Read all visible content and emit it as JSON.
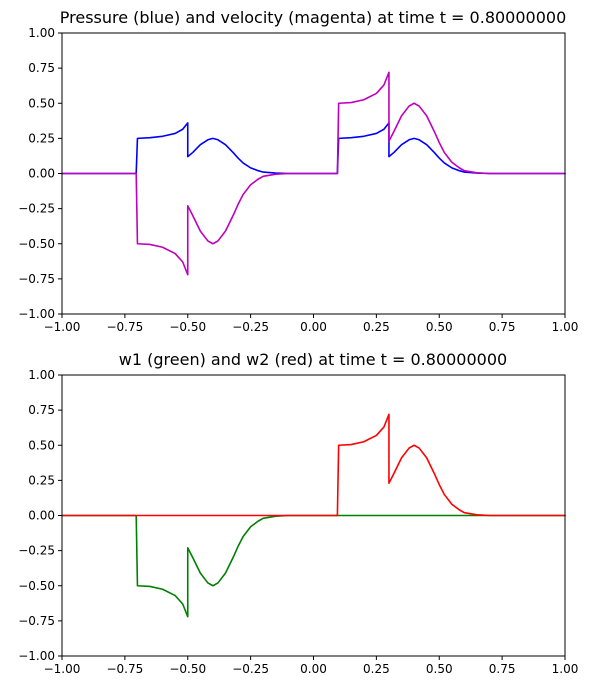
{
  "chart_data": [
    {
      "type": "line",
      "title": "Pressure (blue) and velocity (magenta) at time t =     0.80000000",
      "xlabel": "",
      "ylabel": "",
      "xlim": [
        -1.0,
        1.0
      ],
      "ylim": [
        -1.0,
        1.0
      ],
      "grid": false,
      "x_ticks": [
        "−1.00",
        "−0.75",
        "−0.50",
        "−0.25",
        "0.00",
        "0.25",
        "0.50",
        "0.75",
        "1.00"
      ],
      "y_ticks": [
        "−1.00",
        "−0.75",
        "−0.50",
        "−0.25",
        "0.00",
        "0.25",
        "0.50",
        "0.75",
        "1.00"
      ],
      "series": [
        {
          "color": "#0000ff",
          "x": [
            -1.0,
            -0.72,
            -0.705,
            -0.7,
            -0.65,
            -0.6,
            -0.55,
            -0.52,
            -0.5,
            -0.5,
            -0.48,
            -0.45,
            -0.42,
            -0.4,
            -0.38,
            -0.35,
            -0.32,
            -0.3,
            -0.28,
            -0.25,
            -0.22,
            -0.2,
            -0.15,
            -0.1,
            0.0,
            0.095,
            0.1,
            0.15,
            0.2,
            0.25,
            0.28,
            0.3,
            0.3,
            0.32,
            0.35,
            0.38,
            0.4,
            0.42,
            0.45,
            0.48,
            0.5,
            0.52,
            0.55,
            0.58,
            0.6,
            0.65,
            0.7,
            1.0
          ],
          "y": [
            0.0,
            0.0,
            0.0,
            0.25,
            0.255,
            0.265,
            0.285,
            0.315,
            0.36,
            0.12,
            0.15,
            0.205,
            0.24,
            0.25,
            0.24,
            0.205,
            0.15,
            0.11,
            0.075,
            0.04,
            0.02,
            0.01,
            0.003,
            0.0,
            0.0,
            0.0,
            0.25,
            0.255,
            0.265,
            0.285,
            0.315,
            0.36,
            0.12,
            0.15,
            0.205,
            0.24,
            0.25,
            0.24,
            0.205,
            0.15,
            0.11,
            0.075,
            0.04,
            0.02,
            0.01,
            0.003,
            0.0,
            0.0
          ]
        },
        {
          "color": "#bf00bf",
          "x": [
            -1.0,
            -0.72,
            -0.705,
            -0.7,
            -0.65,
            -0.6,
            -0.55,
            -0.52,
            -0.5,
            -0.5,
            -0.48,
            -0.45,
            -0.42,
            -0.4,
            -0.38,
            -0.35,
            -0.32,
            -0.3,
            -0.28,
            -0.25,
            -0.22,
            -0.2,
            -0.15,
            -0.1,
            0.0,
            0.095,
            0.1,
            0.15,
            0.2,
            0.25,
            0.28,
            0.3,
            0.3,
            0.32,
            0.35,
            0.38,
            0.4,
            0.42,
            0.45,
            0.48,
            0.5,
            0.52,
            0.55,
            0.58,
            0.6,
            0.65,
            0.7,
            1.0
          ],
          "y": [
            0.0,
            0.0,
            0.0,
            -0.5,
            -0.505,
            -0.525,
            -0.57,
            -0.63,
            -0.72,
            -0.23,
            -0.3,
            -0.41,
            -0.48,
            -0.5,
            -0.48,
            -0.41,
            -0.3,
            -0.22,
            -0.15,
            -0.08,
            -0.04,
            -0.02,
            -0.005,
            0.0,
            0.0,
            0.0,
            0.5,
            0.505,
            0.525,
            0.57,
            0.63,
            0.72,
            0.23,
            0.3,
            0.41,
            0.48,
            0.5,
            0.48,
            0.41,
            0.3,
            0.22,
            0.15,
            0.08,
            0.04,
            0.02,
            0.005,
            0.0,
            0.0
          ]
        }
      ]
    },
    {
      "type": "line",
      "title": "w1 (green) and w2 (red) at time t =     0.80000000",
      "xlabel": "",
      "ylabel": "",
      "xlim": [
        -1.0,
        1.0
      ],
      "ylim": [
        -1.0,
        1.0
      ],
      "grid": false,
      "x_ticks": [
        "−1.00",
        "−0.75",
        "−0.50",
        "−0.25",
        "0.00",
        "0.25",
        "0.50",
        "0.75",
        "1.00"
      ],
      "y_ticks": [
        "−1.00",
        "−0.75",
        "−0.50",
        "−0.25",
        "0.00",
        "0.25",
        "0.50",
        "0.75",
        "1.00"
      ],
      "series": [
        {
          "color": "#008000",
          "x": [
            -1.0,
            -0.72,
            -0.705,
            -0.7,
            -0.65,
            -0.6,
            -0.55,
            -0.52,
            -0.5,
            -0.5,
            -0.48,
            -0.45,
            -0.42,
            -0.4,
            -0.38,
            -0.35,
            -0.32,
            -0.3,
            -0.28,
            -0.25,
            -0.22,
            -0.2,
            -0.15,
            -0.1,
            1.0
          ],
          "y": [
            0.0,
            0.0,
            0.0,
            -0.5,
            -0.505,
            -0.525,
            -0.57,
            -0.63,
            -0.72,
            -0.23,
            -0.3,
            -0.41,
            -0.48,
            -0.5,
            -0.48,
            -0.41,
            -0.3,
            -0.22,
            -0.15,
            -0.08,
            -0.04,
            -0.02,
            -0.005,
            0.0,
            0.0
          ]
        },
        {
          "color": "#ff0000",
          "x": [
            -1.0,
            0.0,
            0.095,
            0.1,
            0.15,
            0.2,
            0.25,
            0.28,
            0.3,
            0.3,
            0.32,
            0.35,
            0.38,
            0.4,
            0.42,
            0.45,
            0.48,
            0.5,
            0.52,
            0.55,
            0.58,
            0.6,
            0.65,
            0.7,
            1.0
          ],
          "y": [
            0.0,
            0.0,
            0.0,
            0.5,
            0.505,
            0.525,
            0.57,
            0.63,
            0.72,
            0.23,
            0.3,
            0.41,
            0.48,
            0.5,
            0.48,
            0.41,
            0.3,
            0.22,
            0.15,
            0.08,
            0.04,
            0.02,
            0.005,
            0.0,
            0.0
          ]
        }
      ]
    }
  ]
}
